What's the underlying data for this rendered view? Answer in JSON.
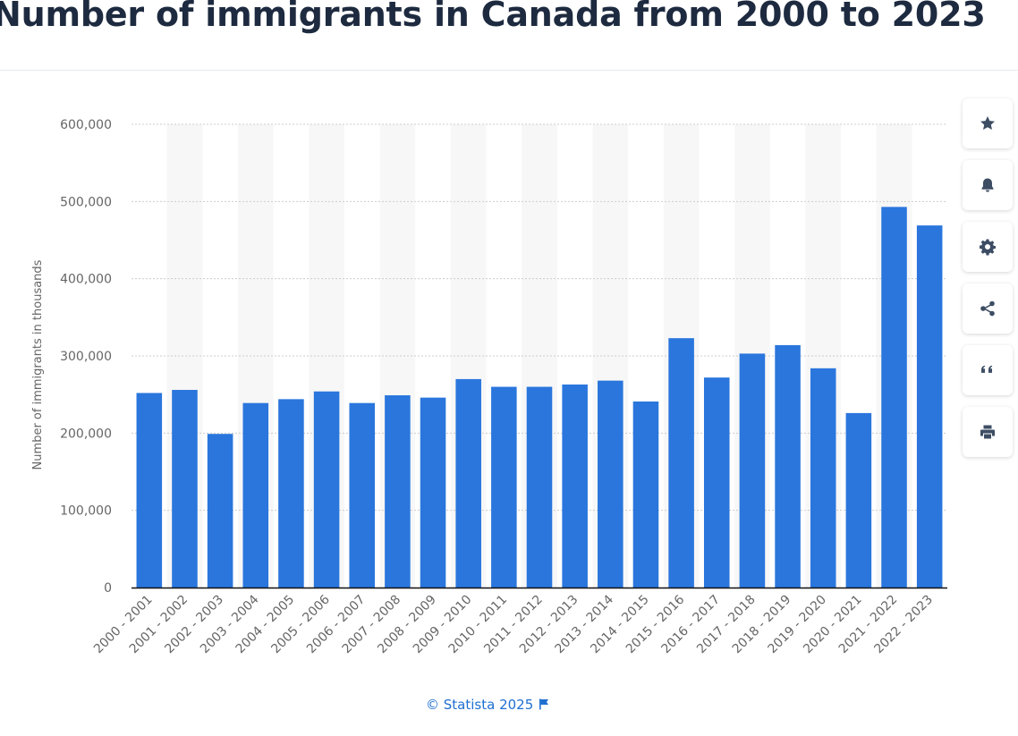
{
  "title": "Number of immigrants in Canada from 2000 to 2023",
  "credit": "© Statista 2025",
  "toolbar": {
    "items": [
      {
        "icon": "star-icon",
        "label": "favorite"
      },
      {
        "icon": "bell-icon",
        "label": "notification"
      },
      {
        "icon": "gear-icon",
        "label": "settings"
      },
      {
        "icon": "share-icon",
        "label": "share"
      },
      {
        "icon": "quote-icon",
        "label": "cite"
      },
      {
        "icon": "print-icon",
        "label": "print"
      }
    ]
  },
  "colors": {
    "bar": "#2a76dd",
    "band": "#f7f7f7",
    "grid": "#cccccc",
    "axis": "#111111",
    "title": "#1d2a3f",
    "credit": "#1f6fd1"
  },
  "chart_data": {
    "type": "bar",
    "ylabel": "Number of immigrants in thousands",
    "xlabel": "",
    "ylim": [
      0,
      600000
    ],
    "yticks": [
      0,
      100000,
      200000,
      300000,
      400000,
      500000,
      600000
    ],
    "ytick_labels": [
      "0",
      "100,000",
      "200,000",
      "300,000",
      "400,000",
      "500,000",
      "600,000"
    ],
    "grid": true,
    "categories": [
      "2000 - 2001",
      "2001 - 2002",
      "2002 - 2003",
      "2003 - 2004",
      "2004 - 2005",
      "2005 - 2006",
      "2006 - 2007",
      "2007 - 2008",
      "2008 - 2009",
      "2009 - 2010",
      "2010 - 2011",
      "2011 - 2012",
      "2012 - 2013",
      "2013 - 2014",
      "2014 - 2015",
      "2015 - 2016",
      "2016 - 2017",
      "2017 - 2018",
      "2018 - 2019",
      "2019 - 2020",
      "2020 - 2021",
      "2021 - 2022",
      "2022 - 2023"
    ],
    "values": [
      252000,
      256000,
      199000,
      239000,
      244000,
      254000,
      239000,
      249000,
      246000,
      270000,
      260000,
      260000,
      263000,
      268000,
      241000,
      323000,
      272000,
      303000,
      314000,
      284000,
      226000,
      493000,
      469000
    ]
  }
}
